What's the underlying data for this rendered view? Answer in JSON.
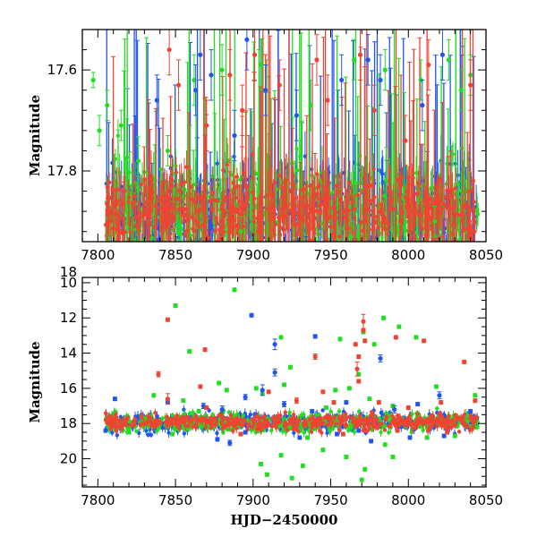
{
  "chart_data": [
    {
      "type": "scatter",
      "panel": "top",
      "xlabel": "",
      "ylabel": "Magnitude",
      "xlim": [
        7790,
        8050
      ],
      "ylim": [
        17.52,
        17.94
      ],
      "y_inverted": true,
      "x_ticks": [
        7800,
        7850,
        7900,
        7950,
        8000,
        8050
      ],
      "x_tick_labels": [
        "7800",
        "7850",
        "7900",
        "7950",
        "8000",
        "8050"
      ],
      "y_ticks": [
        17.6,
        17.8,
        18.0
      ],
      "y_tick_labels": [
        "17.6",
        "17.8",
        "18"
      ],
      "grid": false,
      "dense_band": {
        "x_range": [
          7805,
          8045
        ],
        "center": 17.88,
        "halfwidth": 0.045
      },
      "series": [
        {
          "color": "#22dd22",
          "role": "green",
          "points": [
            [
              7797,
              17.62,
              0.015
            ],
            [
              7801,
              17.72,
              0.03
            ],
            [
              7798,
              17.97,
              0.02
            ],
            [
              7806,
              17.67,
              0.03
            ],
            [
              7815,
              17.71,
              0.03
            ],
            [
              7826,
              17.78,
              0.03
            ],
            [
              7845,
              17.76,
              0.03
            ],
            [
              7862,
              17.62,
              0.05
            ],
            [
              7880,
              17.6,
              0.05
            ],
            [
              7905,
              17.59,
              0.05
            ],
            [
              7937,
              17.67,
              0.05
            ],
            [
              7965,
              17.58,
              0.04
            ],
            [
              7985,
              17.6,
              0.04
            ],
            [
              8008,
              17.62,
              0.04
            ],
            [
              8026,
              17.58,
              0.04
            ],
            [
              8034,
              17.64,
              0.04
            ],
            [
              8040,
              17.61,
              0.04
            ],
            [
              7855,
              17.98,
              0.03
            ],
            [
              7892,
              17.92,
              0.03
            ],
            [
              7963,
              17.93,
              0.03
            ],
            [
              8017,
              17.9,
              0.03
            ]
          ]
        },
        {
          "color": "#2255ee",
          "role": "blue",
          "points": [
            [
              7838,
              17.66,
              0.05
            ],
            [
              7863,
              17.64,
              0.05
            ],
            [
              7866,
              17.57,
              0.05
            ],
            [
              7873,
              17.61,
              0.05
            ],
            [
              7888,
              17.73,
              0.05
            ],
            [
              7896,
              17.54,
              0.06
            ],
            [
              7908,
              17.64,
              0.05
            ],
            [
              7928,
              17.69,
              0.05
            ],
            [
              7957,
              17.62,
              0.05
            ],
            [
              7974,
              17.58,
              0.05
            ],
            [
              7982,
              17.62,
              0.05
            ],
            [
              8009,
              17.67,
              0.05
            ],
            [
              8022,
              17.57,
              0.05
            ],
            [
              7820,
              17.98,
              0.03
            ],
            [
              7851,
              17.96,
              0.03
            ],
            [
              7878,
              17.97,
              0.03
            ],
            [
              7934,
              17.96,
              0.03
            ],
            [
              7990,
              17.97,
              0.03
            ]
          ]
        },
        {
          "color": "#ee4433",
          "role": "red",
          "points": [
            [
              7846,
              17.56,
              0.05
            ],
            [
              7852,
              17.63,
              0.05
            ],
            [
              7870,
              17.71,
              0.05
            ],
            [
              7885,
              17.61,
              0.05
            ],
            [
              7893,
              17.68,
              0.05
            ],
            [
              7901,
              17.57,
              0.05
            ],
            [
              7917,
              17.63,
              0.05
            ],
            [
              7941,
              17.58,
              0.05
            ],
            [
              7948,
              17.66,
              0.05
            ],
            [
              7969,
              17.57,
              0.05
            ],
            [
              7978,
              17.68,
              0.05
            ],
            [
              7998,
              17.74,
              0.05
            ],
            [
              8013,
              17.59,
              0.05
            ],
            [
              8040,
              17.63,
              0.05
            ],
            [
              7811,
              17.98,
              0.03
            ],
            [
              7840,
              17.97,
              0.03
            ],
            [
              7912,
              17.96,
              0.03
            ],
            [
              7988,
              17.97,
              0.03
            ],
            [
              8022,
              17.96,
              0.03
            ]
          ]
        }
      ]
    },
    {
      "type": "scatter",
      "panel": "bottom",
      "xlabel": "HJD−2450000",
      "ylabel": "Magnitude",
      "xlim": [
        7790,
        8050
      ],
      "ylim": [
        9.7,
        21.6
      ],
      "y_inverted": true,
      "x_ticks": [
        7800,
        7850,
        7900,
        7950,
        8000,
        8050
      ],
      "x_tick_labels": [
        "7800",
        "7850",
        "7900",
        "7950",
        "8000",
        "8050"
      ],
      "y_ticks": [
        10,
        12,
        14,
        16,
        18,
        20
      ],
      "y_tick_labels": [
        "10",
        "12",
        "14",
        "16",
        "18",
        "20"
      ],
      "grid": false,
      "dense_band": {
        "x_range": [
          7805,
          8045
        ],
        "center": 17.92,
        "halfwidth": 0.25
      },
      "series": [
        {
          "color": "#22dd22",
          "role": "green",
          "points": [
            [
              7850,
              11.3,
              0.1
            ],
            [
              7859,
              13.9,
              0.1
            ],
            [
              7888,
              10.4,
              0.1
            ],
            [
              7918,
              13.1,
              0.1
            ],
            [
              7924,
              14.8,
              0.1
            ],
            [
              7920,
              15.8,
              0.1
            ],
            [
              7956,
              13.2,
              0.1
            ],
            [
              7971,
              12.8,
              0.1
            ],
            [
              7978,
              13.5,
              0.1
            ],
            [
              7984,
              12.0,
              0.1
            ],
            [
              7994,
              12.5,
              0.1
            ],
            [
              8005,
              13.1,
              0.1
            ],
            [
              7836,
              16.4,
              0.1
            ],
            [
              7855,
              16.7,
              0.1
            ],
            [
              7878,
              15.7,
              0.1
            ],
            [
              7883,
              16.1,
              0.1
            ],
            [
              7902,
              16.0,
              0.1
            ],
            [
              7906,
              16.3,
              0.1
            ],
            [
              7953,
              16.1,
              0.1
            ],
            [
              7962,
              16.0,
              0.1
            ],
            [
              7968,
              15.2,
              0.1
            ],
            [
              7975,
              16.6,
              0.1
            ],
            [
              8018,
              15.9,
              0.1
            ],
            [
              8043,
              16.4,
              0.1
            ],
            [
              7905,
              20.3,
              0.1
            ],
            [
              7909,
              20.9,
              0.1
            ],
            [
              7918,
              19.8,
              0.1
            ],
            [
              7925,
              21.1,
              0.1
            ],
            [
              7932,
              20.4,
              0.1
            ],
            [
              7945,
              19.5,
              0.1
            ],
            [
              7960,
              19.9,
              0.1
            ],
            [
              7970,
              21.2,
              0.1
            ],
            [
              7972,
              20.6,
              0.1
            ],
            [
              7985,
              19.2,
              0.1
            ],
            [
              7990,
              19.9,
              0.1
            ],
            [
              7935,
              18.8,
              0.1
            ],
            [
              7848,
              18.6,
              0.1
            ],
            [
              7820,
              18.5,
              0.1
            ],
            [
              8012,
              18.8,
              0.1
            ],
            [
              8030,
              18.7,
              0.1
            ],
            [
              7865,
              17.3,
              0.1
            ],
            [
              7990,
              17.0,
              0.1
            ],
            [
              7947,
              17.1,
              0.1
            ],
            [
              7820,
              18.3,
              0.1
            ]
          ]
        },
        {
          "color": "#2255ee",
          "role": "blue",
          "points": [
            [
              7899,
              11.85,
              0.1
            ],
            [
              7914,
              13.5,
              0.3
            ],
            [
              7940,
              13.05,
              0.1
            ],
            [
              7914,
              15.1,
              0.2
            ],
            [
              7982,
              14.3,
              0.2
            ],
            [
              7811,
              16.6,
              0.1
            ],
            [
              7845,
              16.8,
              0.1
            ],
            [
              7868,
              17.0,
              0.15
            ],
            [
              7880,
              17.2,
              0.2
            ],
            [
              7895,
              16.5,
              0.15
            ],
            [
              7906,
              16.1,
              0.3
            ],
            [
              7920,
              16.9,
              0.15
            ],
            [
              7938,
              17.3,
              0.1
            ],
            [
              7960,
              16.8,
              0.1
            ],
            [
              7991,
              17.2,
              0.2
            ],
            [
              8006,
              16.9,
              0.1
            ],
            [
              8020,
              16.4,
              0.2
            ],
            [
              8040,
              17.3,
              0.1
            ],
            [
              7877,
              18.9,
              0.1
            ],
            [
              7885,
              19.1,
              0.15
            ],
            [
              7930,
              18.8,
              0.1
            ],
            [
              7954,
              18.6,
              0.1
            ],
            [
              7976,
              19.0,
              0.1
            ],
            [
              8001,
              18.8,
              0.1
            ],
            [
              8023,
              18.7,
              0.1
            ],
            [
              7805,
              18.4,
              0.1
            ],
            [
              7895,
              18.5,
              0.1
            ],
            [
              7968,
              18.4,
              0.1
            ]
          ]
        },
        {
          "color": "#ee4433",
          "role": "red",
          "points": [
            [
              7845,
              12.1,
              0.1
            ],
            [
              7971,
              12.2,
              0.4
            ],
            [
              7971,
              12.7,
              0.1
            ],
            [
              7992,
              13.1,
              0.1
            ],
            [
              8010,
              13.3,
              0.1
            ],
            [
              7972,
              13.3,
              0.1
            ],
            [
              7966,
              13.5,
              0.1
            ],
            [
              7869,
              13.8,
              0.1
            ],
            [
              7940,
              14.2,
              0.15
            ],
            [
              8036,
              14.5,
              0.1
            ],
            [
              7968,
              14.2,
              0.1
            ],
            [
              7839,
              15.2,
              0.15
            ],
            [
              7967,
              14.9,
              0.4
            ],
            [
              7968,
              15.6,
              0.1
            ],
            [
              7866,
              15.9,
              0.1
            ],
            [
              7845,
              16.6,
              0.3
            ],
            [
              7910,
              16.2,
              0.1
            ],
            [
              7928,
              16.7,
              0.15
            ],
            [
              7945,
              16.2,
              0.1
            ],
            [
              7952,
              16.8,
              0.1
            ],
            [
              7981,
              16.8,
              0.1
            ],
            [
              8000,
              17.1,
              0.1
            ],
            [
              8021,
              16.8,
              0.1
            ],
            [
              8043,
              16.7,
              0.1
            ],
            [
              7870,
              17.1,
              0.1
            ],
            [
              7892,
              18.6,
              0.1
            ],
            [
              7958,
              18.6,
              0.1
            ],
            [
              7993,
              18.4,
              0.1
            ],
            [
              8025,
              18.5,
              0.1
            ]
          ]
        }
      ]
    }
  ]
}
